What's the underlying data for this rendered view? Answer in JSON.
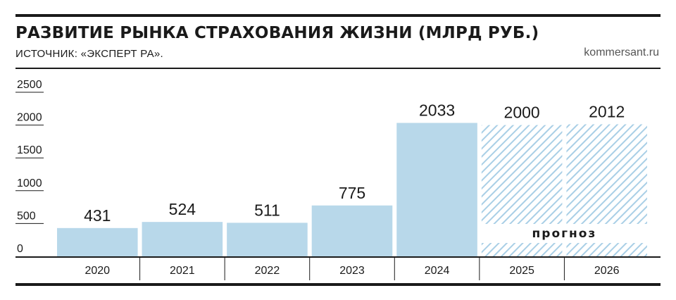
{
  "chart_data": {
    "type": "bar",
    "title": "РАЗВИТИЕ РЫНКА СТРАХОВАНИЯ ЖИЗНИ (МЛРД РУБ.)",
    "source": "ИСТОЧНИК: «ЭКСПЕРТ РА».",
    "brand": "kommersant.ru",
    "categories": [
      "2020",
      "2021",
      "2022",
      "2023",
      "2024",
      "2025",
      "2026"
    ],
    "values": [
      431,
      524,
      511,
      775,
      2033,
      2000,
      2012
    ],
    "forecast": [
      false,
      false,
      false,
      false,
      false,
      true,
      true
    ],
    "forecast_label": "прогноз",
    "yticks": [
      "2500",
      "2000",
      "1500",
      "1000",
      "500",
      "0"
    ],
    "ylim": [
      0,
      2500
    ],
    "bar_color": "#b8d8ea",
    "hatch_color": "#a9cfe6",
    "grid": false
  }
}
